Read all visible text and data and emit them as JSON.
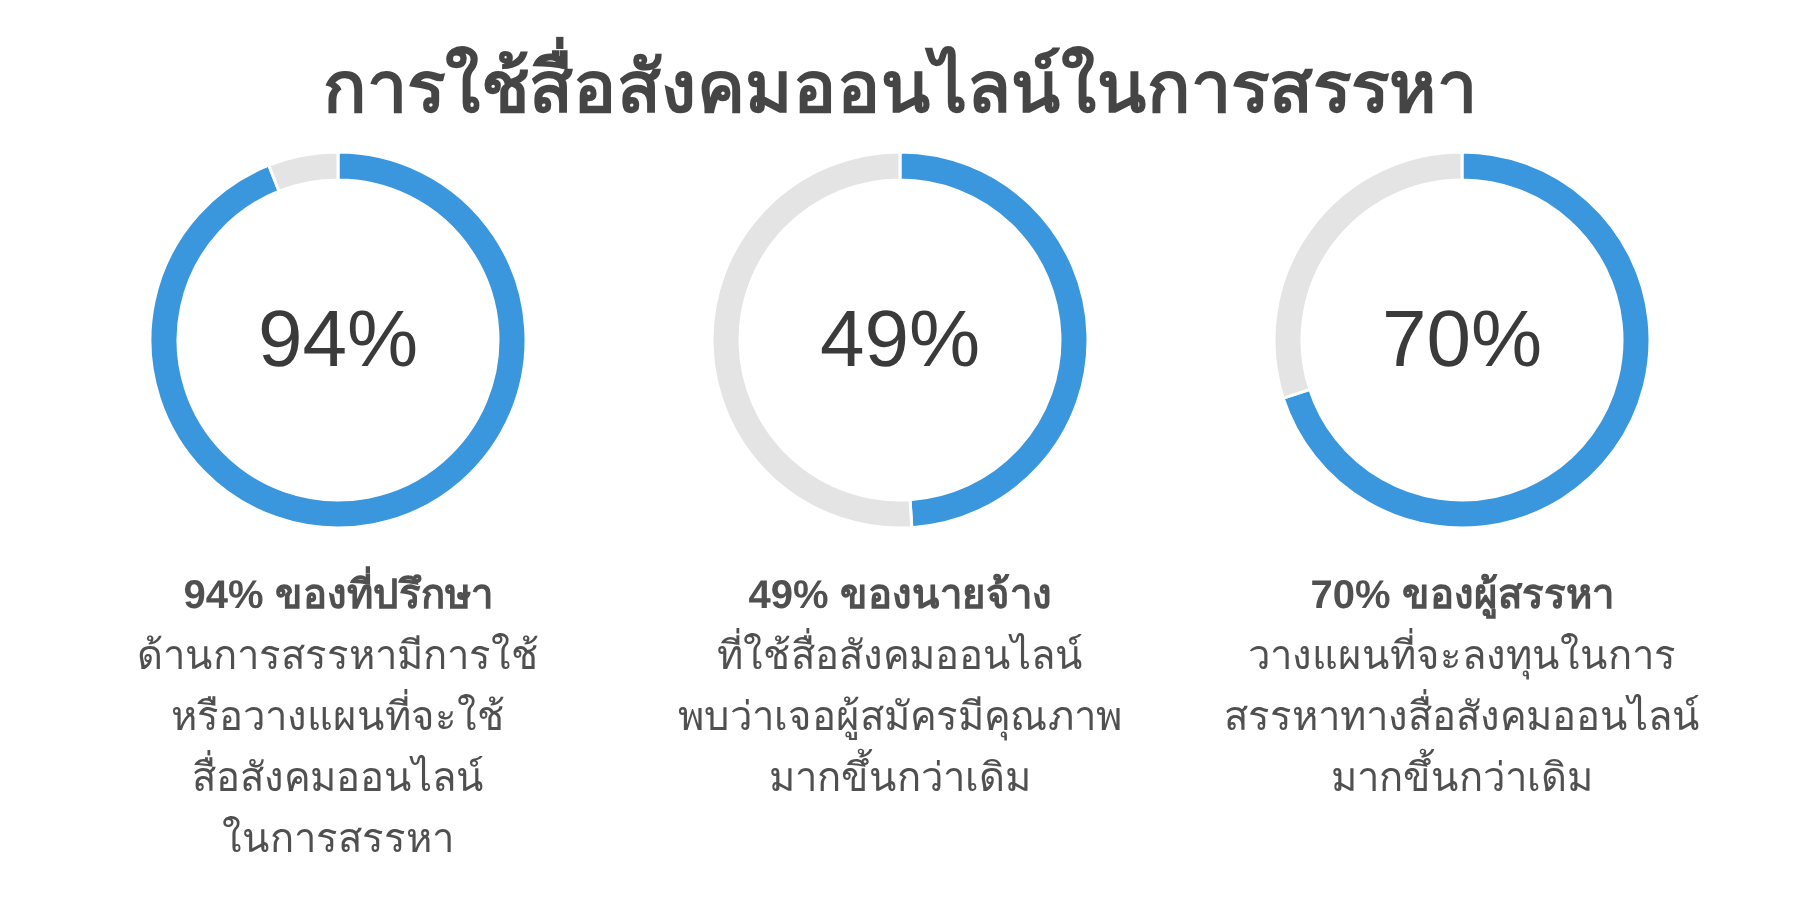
{
  "chart_data": [
    {
      "type": "donut",
      "title": "การใช้สื่อสังคมออนไลน์ในการสรรหา",
      "categories": [
        null,
        null
      ],
      "values": [
        94,
        6
      ],
      "colors": [
        "#3a96dd",
        "#e4e4e4"
      ],
      "annotations": [
        "94%",
        "94% ของที่ปรึกษา\nด้านการสรรหามีการใช้\nหรือวางแผนที่จะใช้\nสื่อสังคมออนไลน์\nในการสรรหา"
      ]
    },
    {
      "type": "donut",
      "categories": [
        null,
        null
      ],
      "values": [
        49,
        51
      ],
      "colors": [
        "#3a96dd",
        "#e4e4e4"
      ],
      "annotations": [
        "49%",
        "49% ของนายจ้าง\nที่ใช้สื่อสังคมออนไลน์\nพบว่าเจอผู้สมัครมีคุณภาพ\nมากขึ้นกว่าเดิม"
      ]
    },
    {
      "type": "donut",
      "categories": [
        null,
        null
      ],
      "values": [
        70,
        30
      ],
      "colors": [
        "#3a96dd",
        "#e4e4e4"
      ],
      "annotations": [
        "70%",
        "70% ของผู้สรรหา\nวางแผนที่จะลงทุนในการ\nสรรหาทางสื่อสังคมออนไลน์\nมากขึ้นกว่าเดิม"
      ]
    }
  ]
}
